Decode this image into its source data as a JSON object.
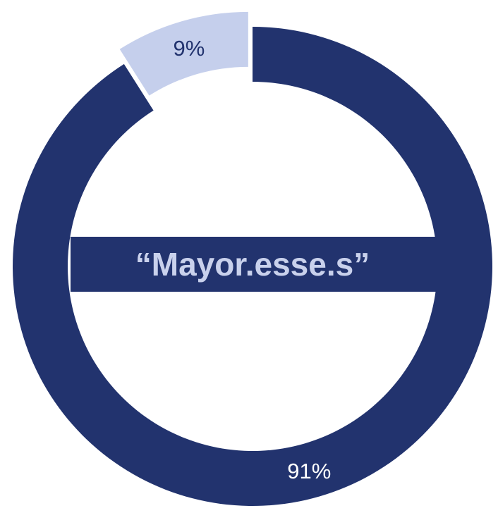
{
  "chart_data": {
    "type": "pie",
    "variant": "donut",
    "title": "",
    "center_label": "“Mayor.esse.s”",
    "slices": [
      {
        "label": "",
        "value": 91,
        "value_label": "91%",
        "color": "#22336e",
        "label_color": "#ffffff",
        "exploded": false
      },
      {
        "label": "",
        "value": 9,
        "value_label": "9%",
        "color": "#c5cfec",
        "label_color": "#22336e",
        "exploded": true
      }
    ],
    "legend": "none",
    "background": "#ffffff"
  }
}
